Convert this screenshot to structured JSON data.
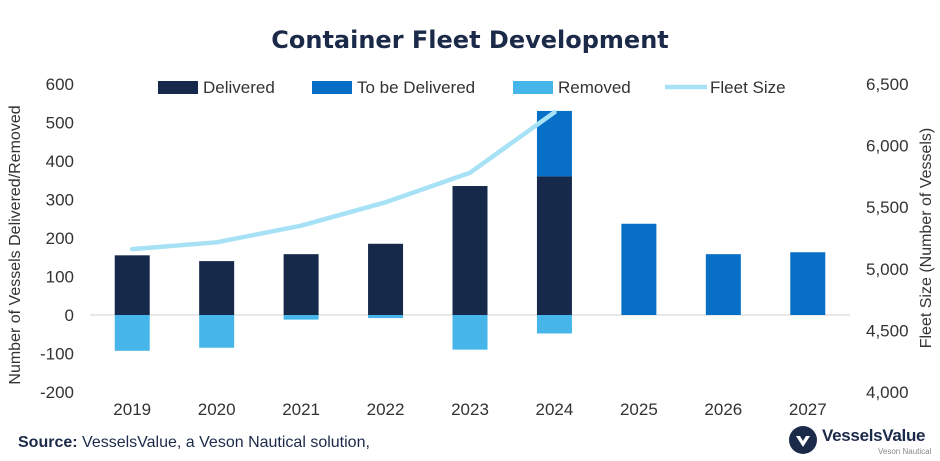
{
  "chart_data": {
    "type": "bar",
    "title": "Container Fleet Development",
    "categories": [
      "2019",
      "2020",
      "2021",
      "2022",
      "2023",
      "2024",
      "2025",
      "2026",
      "2027"
    ],
    "series": [
      {
        "name": "Delivered",
        "color": "#17294a",
        "values": [
          155,
          140,
          158,
          185,
          335,
          360,
          0,
          0,
          0
        ]
      },
      {
        "name": "To be Delivered",
        "color": "#0770c6",
        "values": [
          0,
          0,
          0,
          0,
          0,
          170,
          237,
          158,
          163
        ]
      },
      {
        "name": "Removed",
        "color": "#46b6ea",
        "values": [
          -93,
          -85,
          -12,
          -8,
          -90,
          -48,
          0,
          0,
          0
        ]
      },
      {
        "name": "Fleet Size",
        "color": "#a6e1f6",
        "type": "line",
        "axis": "right",
        "values": [
          5160,
          5215,
          5350,
          5540,
          5780,
          6270,
          null,
          null,
          null
        ]
      }
    ],
    "ylabel": "Number of Vessels Delivered/Removed",
    "y2label": "Fleet Size (Number of Vessels)",
    "ylim": [
      -200,
      600
    ],
    "y2lim": [
      4000,
      6500
    ],
    "yticks": [
      "600",
      "500",
      "400",
      "300",
      "200",
      "100",
      "0",
      "-100",
      "-200"
    ],
    "y2ticks": [
      "6,500",
      "6,000",
      "5,500",
      "5,000",
      "4,500",
      "4,000"
    ],
    "grid": false,
    "legend_position": "top"
  },
  "footer": {
    "source_label": "Source:",
    "source_text": " VesselsValue, a Veson Nautical solution,"
  },
  "logo": {
    "name": "VesselsValue",
    "sub": "Veson Nautical"
  }
}
